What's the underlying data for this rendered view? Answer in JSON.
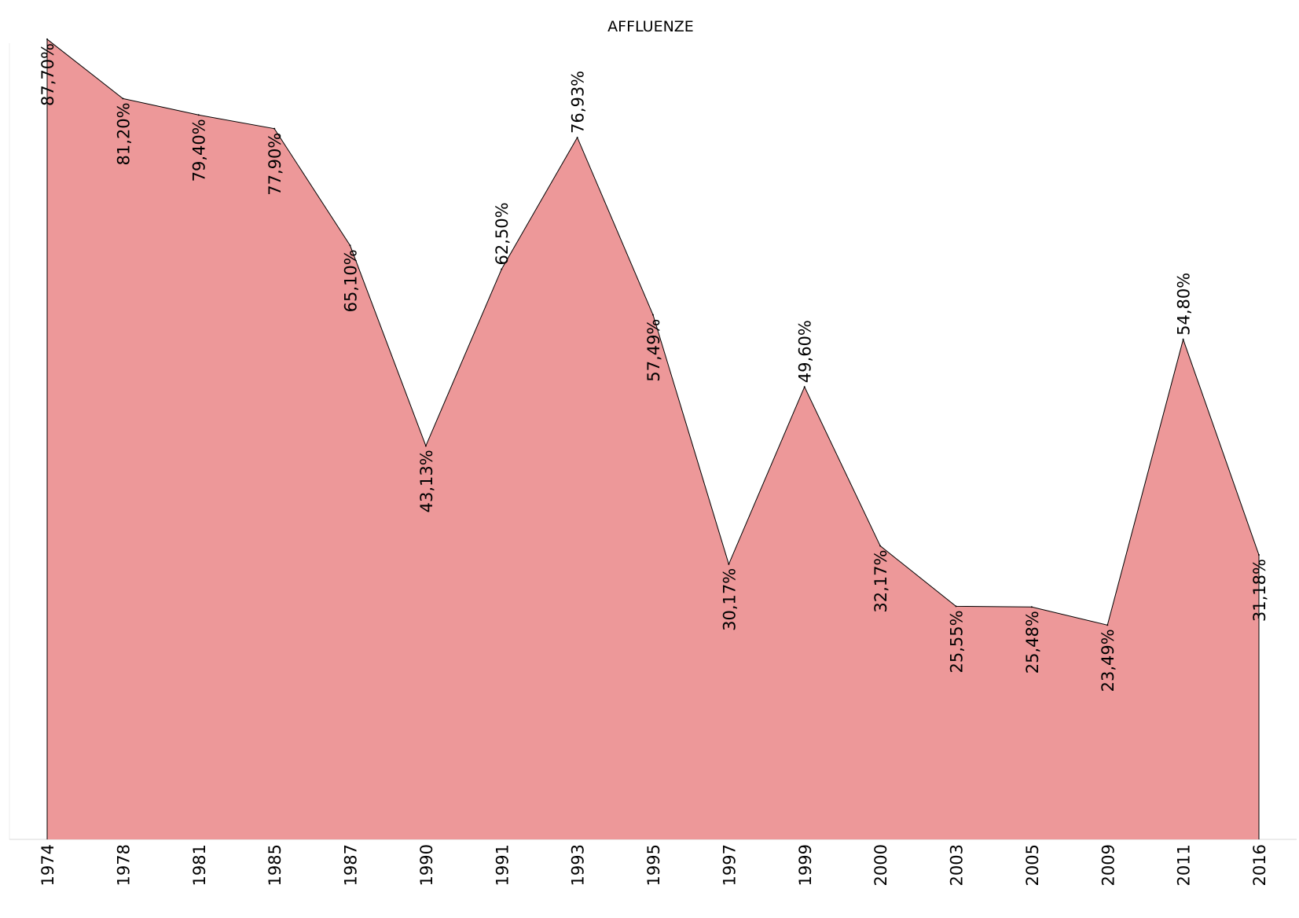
{
  "chart_data": {
    "type": "area",
    "title": "AFFLUENZE",
    "xlabel": "",
    "ylabel": "",
    "categories": [
      "1974",
      "1978",
      "1981",
      "1985",
      "1987",
      "1990",
      "1991",
      "1993",
      "1995",
      "1997",
      "1999",
      "2000",
      "2003",
      "2005",
      "2009",
      "2011",
      "2016"
    ],
    "values": [
      87.7,
      81.2,
      79.4,
      77.9,
      65.1,
      43.13,
      62.5,
      76.93,
      57.49,
      30.17,
      49.6,
      32.17,
      25.55,
      25.48,
      23.49,
      54.8,
      31.18
    ],
    "data_labels": [
      "87,70%",
      "81,20%",
      "79,40%",
      "77,90%",
      "65,10%",
      "43,13%",
      "62,50%",
      "76,93%",
      "57,49%",
      "30,17%",
      "49,60%",
      "32,17%",
      "25,55%",
      "25,48%",
      "23,49%",
      "54,80%",
      "31,18%"
    ],
    "ylim": [
      0,
      92
    ],
    "grid": false,
    "legend": "none",
    "fill_color": "#ed9899",
    "line_color": "#000000"
  }
}
